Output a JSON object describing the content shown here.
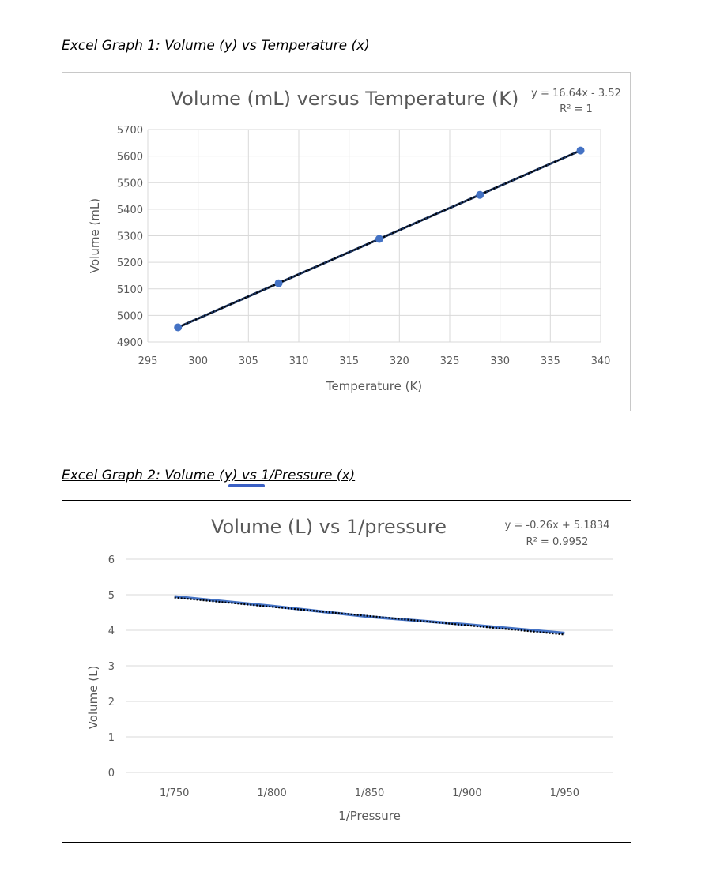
{
  "headings": {
    "graph1": "Excel Graph 1: Volume (y) vs Temperature (x)",
    "graph2": "Excel Graph 2: Volume (y)  vs 1/Pressure  (x)"
  },
  "chart_data": [
    {
      "type": "scatter",
      "title": "Volume (mL) versus Temperature (K)",
      "xlabel": "Temperature (K)",
      "ylabel": "Volume (mL)",
      "xlim": [
        295,
        340
      ],
      "ylim": [
        4900,
        5700
      ],
      "x_ticks": [
        "295",
        "300",
        "305",
        "310",
        "315",
        "320",
        "325",
        "330",
        "335",
        "340"
      ],
      "y_ticks": [
        "4900",
        "5000",
        "5100",
        "5200",
        "5300",
        "5400",
        "5500",
        "5600",
        "5700"
      ],
      "grid": true,
      "trendline": {
        "equation": "y = 16.64x - 3.52",
        "r2": "R² = 1",
        "style": "dotted-black"
      },
      "series": [
        {
          "x": [
            298,
            308,
            318,
            328,
            338
          ],
          "y": [
            4955,
            5121,
            5288,
            5454,
            5621
          ],
          "color": "#4472c4"
        }
      ]
    },
    {
      "type": "line",
      "title": "Volume (L) vs 1/pressure",
      "xlabel": "1/Pressure",
      "ylabel": "Volume (L)",
      "ylim": [
        0,
        6
      ],
      "categories": [
        "1/750",
        "1/800",
        "1/850",
        "1/900",
        "1/950"
      ],
      "y_ticks": [
        "0",
        "1",
        "2",
        "3",
        "4",
        "5",
        "6"
      ],
      "grid": true,
      "trendline": {
        "equation": "y = -0.26x + 5.1834",
        "r2": "R² = 0.9952",
        "style": "dotted-black"
      },
      "series": [
        {
          "values": [
            4.95,
            4.68,
            4.38,
            4.16,
            3.92
          ],
          "color": "#4472c4"
        }
      ]
    }
  ]
}
